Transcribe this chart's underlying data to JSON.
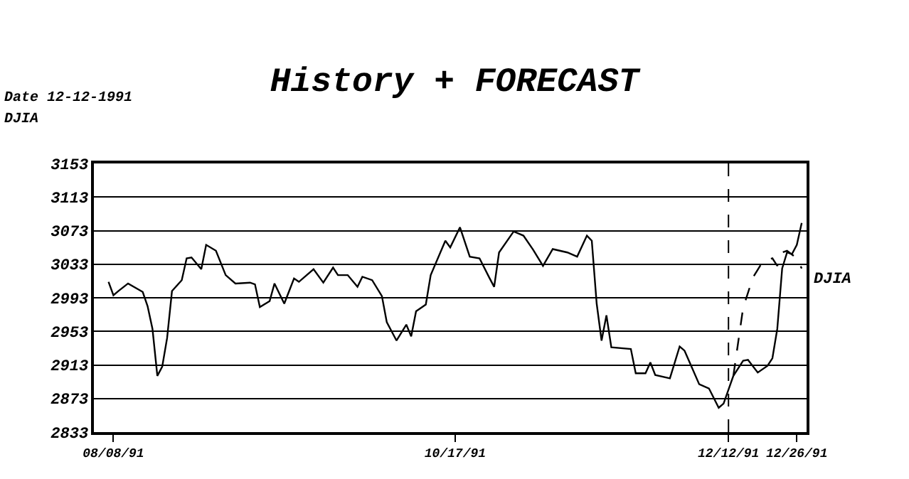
{
  "chart_data": {
    "type": "line",
    "title": "History + FORECAST",
    "ylabel": "DJIA",
    "annotations": [
      "Date 12-12-1991"
    ],
    "series": [
      {
        "color": "#000000",
        "line_style": "solid",
        "x": [
          "1991-08-07",
          "1991-08-08",
          "1991-08-09",
          "1991-08-11",
          "1991-08-14",
          "1991-08-15",
          "1991-08-16",
          "1991-08-17",
          "1991-08-18",
          "1991-08-19",
          "1991-08-20",
          "1991-08-22",
          "1991-08-23",
          "1991-08-24",
          "1991-08-26",
          "1991-08-27",
          "1991-08-29",
          "1991-08-31",
          "1991-09-02",
          "1991-09-05",
          "1991-09-06",
          "1991-09-07",
          "1991-09-09",
          "1991-09-10",
          "1991-09-12",
          "1991-09-14",
          "1991-09-15",
          "1991-09-18",
          "1991-09-20",
          "1991-09-22",
          "1991-09-23",
          "1991-09-25",
          "1991-09-27",
          "1991-09-28",
          "1991-09-30",
          "1991-10-02",
          "1991-10-03",
          "1991-10-05",
          "1991-10-07",
          "1991-10-08",
          "1991-10-09",
          "1991-10-11",
          "1991-10-12",
          "1991-10-15",
          "1991-10-16",
          "1991-10-18",
          "1991-10-20",
          "1991-10-22",
          "1991-10-24",
          "1991-10-25",
          "1991-10-26",
          "1991-10-29",
          "1991-10-31",
          "1991-11-02",
          "1991-11-04",
          "1991-11-06",
          "1991-11-09",
          "1991-11-11",
          "1991-11-13",
          "1991-11-14",
          "1991-11-15",
          "1991-11-16",
          "1991-11-17",
          "1991-11-18",
          "1991-11-22",
          "1991-11-23",
          "1991-11-25",
          "1991-11-26",
          "1991-11-27",
          "1991-11-30",
          "1991-12-02",
          "1991-12-03",
          "1991-12-06",
          "1991-12-08",
          "1991-12-10",
          "1991-12-11",
          "1991-12-13",
          "1991-12-15",
          "1991-12-16",
          "1991-12-18",
          "1991-12-20",
          "1991-12-21",
          "1991-12-22",
          "1991-12-23",
          "1991-12-24",
          "1991-12-25",
          "1991-12-26",
          "1991-12-27"
        ],
        "values": [
          3012,
          2996,
          3001,
          3010,
          3000,
          2983,
          2956,
          2900,
          2911,
          2945,
          3001,
          3014,
          3040,
          3041,
          3027,
          3056,
          3049,
          3020,
          3010,
          3011,
          3009,
          2982,
          2989,
          3010,
          2986,
          3016,
          3012,
          3027,
          3011,
          3029,
          3020,
          3020,
          3006,
          3018,
          3014,
          2995,
          2964,
          2942,
          2961,
          2947,
          2977,
          2985,
          3020,
          3061,
          3053,
          3077,
          3042,
          3040,
          3017,
          3006,
          3047,
          3072,
          3067,
          3050,
          3031,
          3051,
          3047,
          3042,
          3067,
          3061,
          2986,
          2942,
          2972,
          2934,
          2932,
          2903,
          2903,
          2916,
          2901,
          2897,
          2935,
          2930,
          2890,
          2885,
          2862,
          2867,
          2900,
          2918,
          2919,
          2904,
          2912,
          2921,
          2956,
          3028,
          3047,
          3045,
          3056,
          3082
        ]
      },
      {
        "name": "DJIA",
        "color": "#000000",
        "line_style": "dashed",
        "x": [
          "1991-12-13",
          "1991-12-15",
          "1991-12-17",
          "1991-12-19",
          "1991-12-21",
          "1991-12-22",
          "1991-12-23",
          "1991-12-24",
          "1991-12-26",
          "1991-12-27"
        ],
        "values": [
          2900,
          2981,
          3017,
          3036,
          3040,
          3031,
          3047,
          3049,
          3040,
          3028
        ]
      }
    ],
    "xlim": [
      "1991-08-04",
      "1991-12-28"
    ],
    "xticks": [
      {
        "value": "1991-08-08",
        "label": "08/08/91"
      },
      {
        "value": "1991-10-17",
        "label": "10/17/91"
      },
      {
        "value": "1991-12-12",
        "label": "12/12/91"
      },
      {
        "value": "1991-12-26",
        "label": "12/26/91"
      }
    ],
    "ylim": [
      2833,
      3153
    ],
    "yticks": [
      2833,
      2873,
      2913,
      2953,
      2993,
      3033,
      3073,
      3113,
      3153
    ],
    "ref_lines": [
      {
        "axis": "x",
        "value": "1991-12-12",
        "color": "#000000",
        "line_style": "dashed"
      }
    ],
    "grid": "y",
    "legend": false,
    "marker": "none"
  }
}
